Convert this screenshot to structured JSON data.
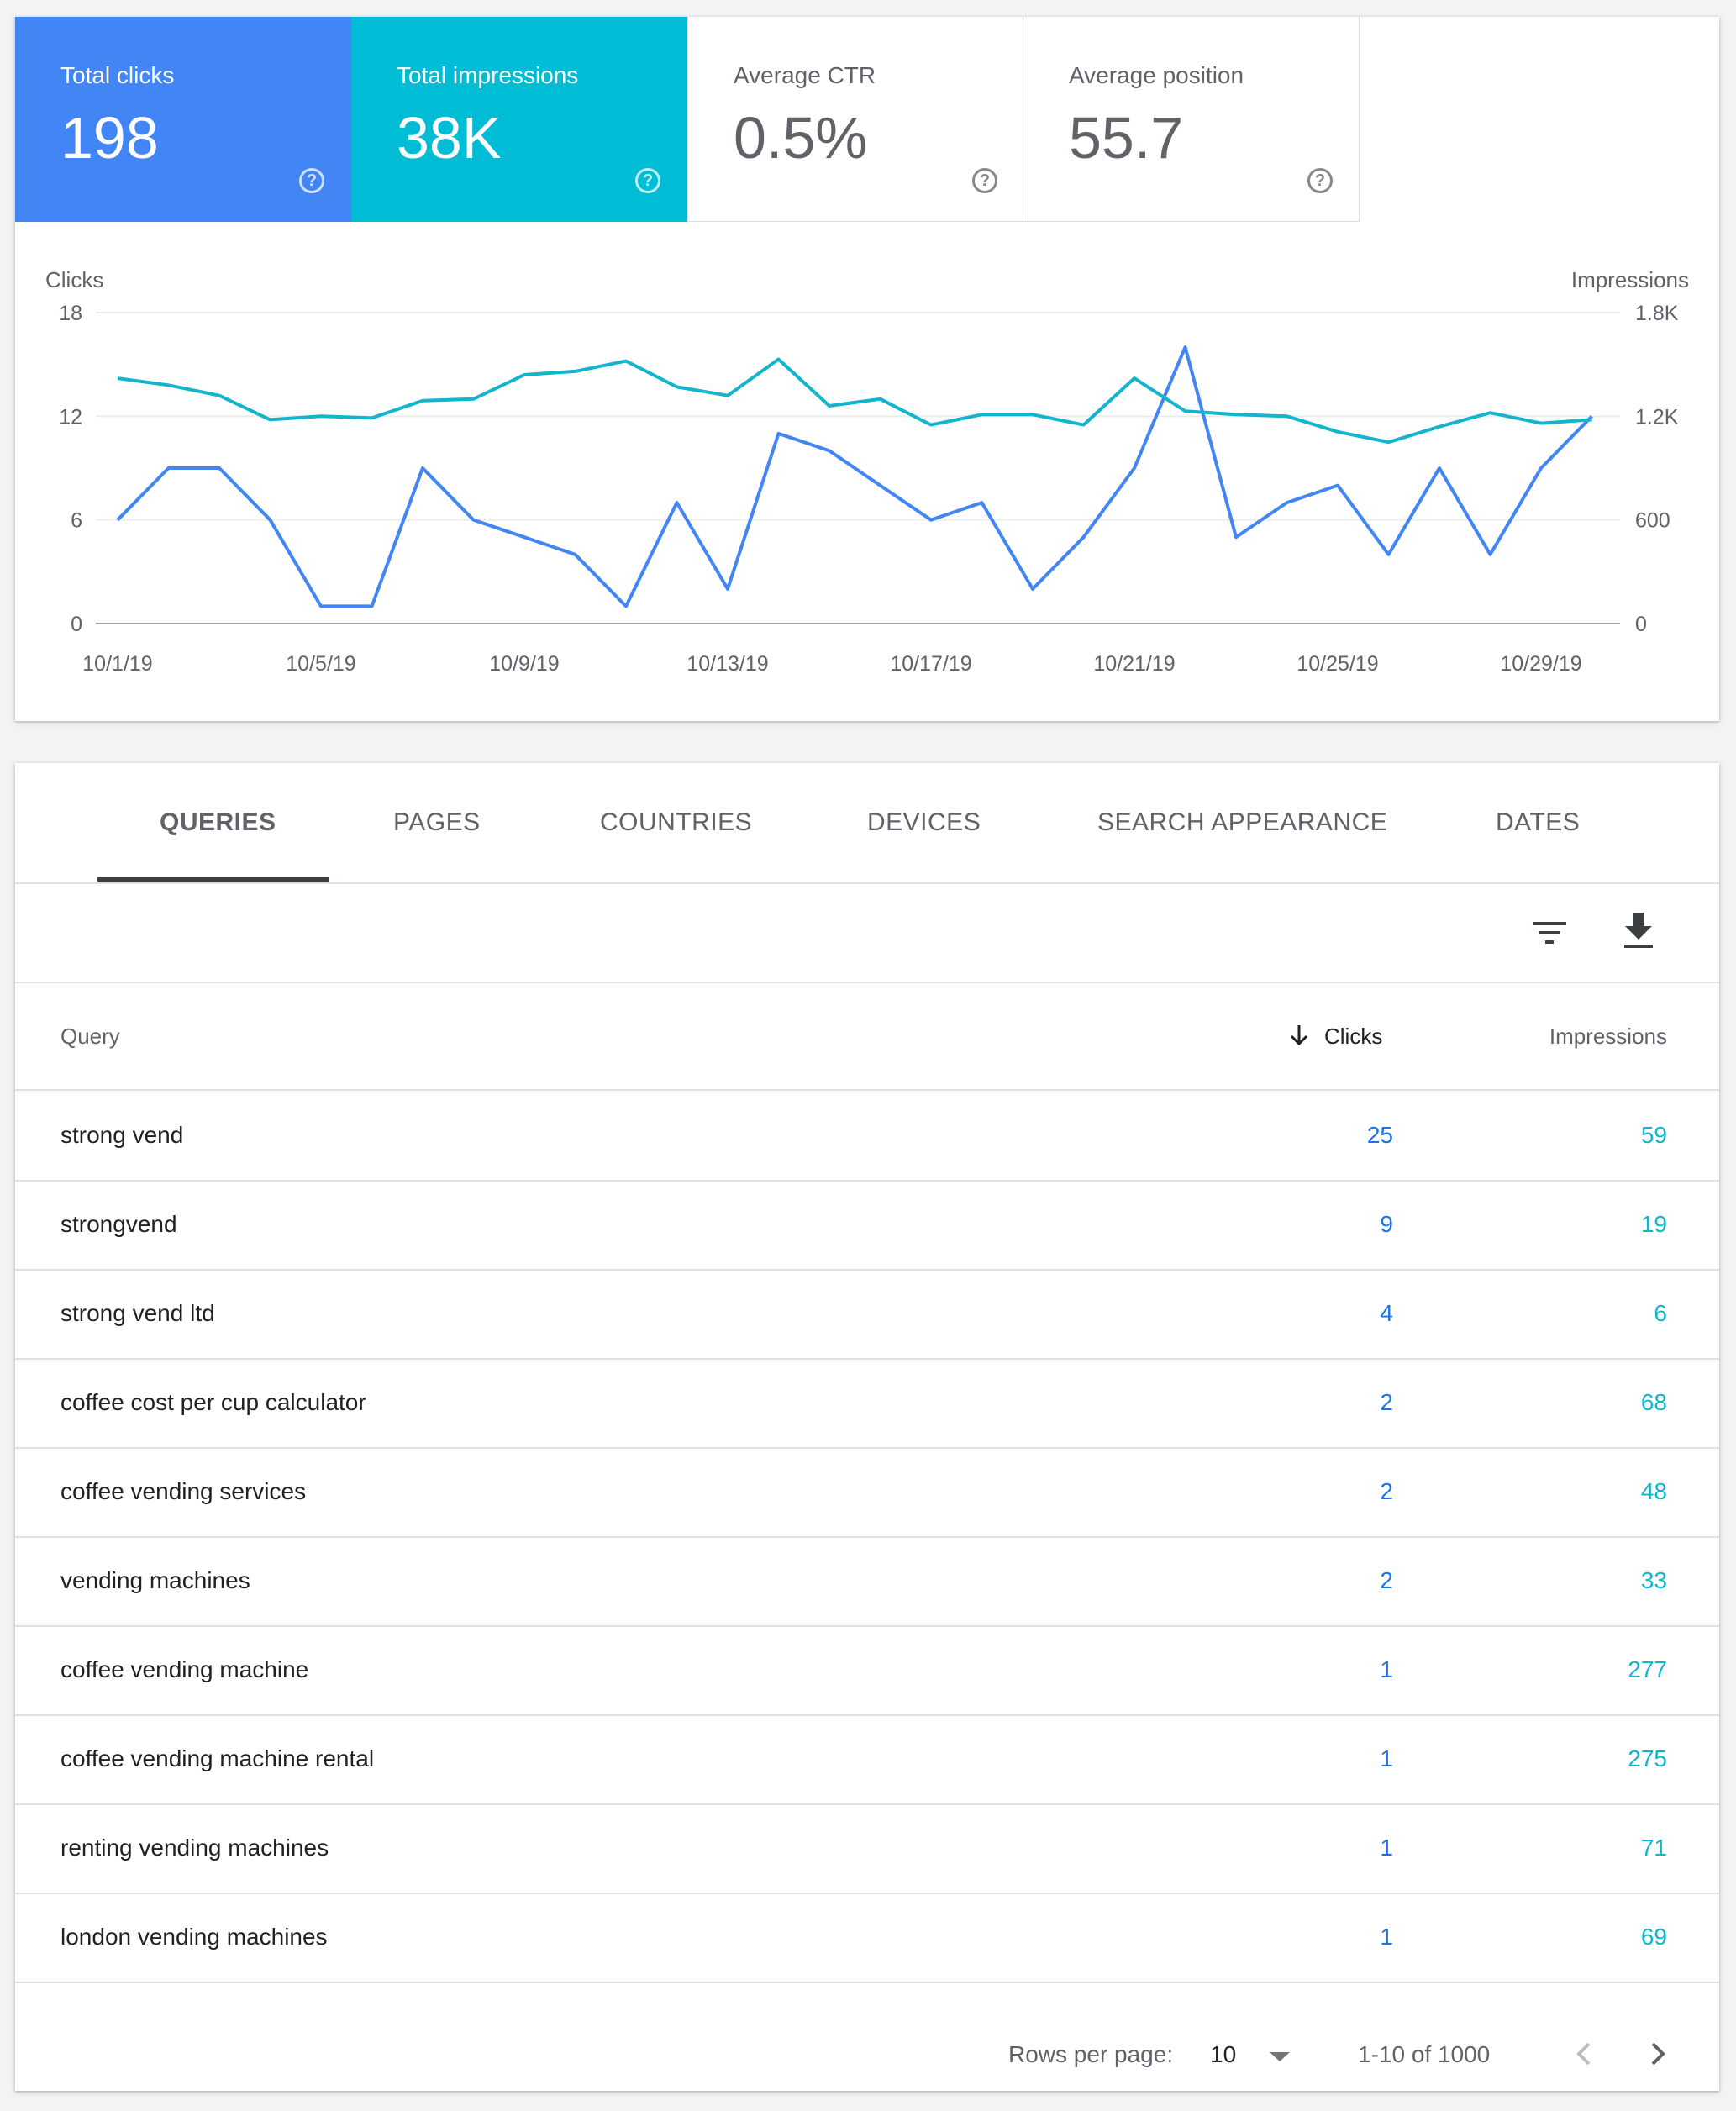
{
  "metrics": [
    {
      "label": "Total clicks",
      "value": "198",
      "bg": "#4285f4"
    },
    {
      "label": "Total impressions",
      "value": "38K",
      "bg": "#00bcd4"
    },
    {
      "label": "Average CTR",
      "value": "0.5%"
    },
    {
      "label": "Average position",
      "value": "55.7"
    }
  ],
  "help_glyph": "?",
  "chart_data": {
    "type": "line",
    "x": [
      "10/1/19",
      "10/2/19",
      "10/3/19",
      "10/4/19",
      "10/5/19",
      "10/6/19",
      "10/7/19",
      "10/8/19",
      "10/9/19",
      "10/10/19",
      "10/11/19",
      "10/12/19",
      "10/13/19",
      "10/14/19",
      "10/15/19",
      "10/16/19",
      "10/17/19",
      "10/18/19",
      "10/19/19",
      "10/20/19",
      "10/21/19",
      "10/22/19",
      "10/23/19",
      "10/24/19",
      "10/25/19",
      "10/26/19",
      "10/27/19",
      "10/28/19",
      "10/29/19",
      "10/30/19"
    ],
    "tick_labels": [
      "10/1/19",
      "10/5/19",
      "10/9/19",
      "10/13/19",
      "10/17/19",
      "10/21/19",
      "10/25/19",
      "10/29/19"
    ],
    "series": [
      {
        "name": "Clicks",
        "axis": "left",
        "color": "#4285f4",
        "values": [
          6,
          9,
          9,
          6,
          1,
          1,
          9,
          6,
          5,
          4,
          1,
          7,
          2,
          11,
          10,
          8,
          6,
          7,
          2,
          5,
          9,
          16,
          5,
          7,
          8,
          4,
          9,
          4,
          9,
          12
        ]
      },
      {
        "name": "Impressions",
        "axis": "right",
        "color": "#12b5cb",
        "values": [
          1420,
          1380,
          1320,
          1180,
          1200,
          1190,
          1290,
          1300,
          1440,
          1460,
          1520,
          1370,
          1320,
          1530,
          1260,
          1300,
          1150,
          1210,
          1210,
          1150,
          1420,
          1230,
          1210,
          1200,
          1110,
          1050,
          1140,
          1220,
          1160,
          1180
        ]
      }
    ],
    "ylabel_left": "Clicks",
    "ylabel_right": "Impressions",
    "ylim_left": [
      0,
      18
    ],
    "ylim_right": [
      0,
      1800
    ],
    "yticks_left": [
      "0",
      "6",
      "12",
      "18"
    ],
    "yticks_right": [
      "0",
      "600",
      "1.2K",
      "1.8K"
    ],
    "grid": true
  },
  "tabs": [
    {
      "label": "QUERIES",
      "active": true
    },
    {
      "label": "PAGES"
    },
    {
      "label": "COUNTRIES"
    },
    {
      "label": "DEVICES"
    },
    {
      "label": "SEARCH APPEARANCE"
    },
    {
      "label": "DATES"
    }
  ],
  "toolbar": {
    "filter_icon": "filter-icon",
    "download_icon": "download-icon"
  },
  "table": {
    "headers": {
      "query": "Query",
      "clicks": "Clicks",
      "impressions": "Impressions"
    },
    "sort_icon": "arrow-down-icon",
    "rows": [
      {
        "query": "strong vend",
        "clicks": "25",
        "impressions": "59"
      },
      {
        "query": "strongvend",
        "clicks": "9",
        "impressions": "19"
      },
      {
        "query": "strong vend ltd",
        "clicks": "4",
        "impressions": "6"
      },
      {
        "query": "coffee cost per cup calculator",
        "clicks": "2",
        "impressions": "68"
      },
      {
        "query": "coffee vending services",
        "clicks": "2",
        "impressions": "48"
      },
      {
        "query": "vending machines",
        "clicks": "2",
        "impressions": "33"
      },
      {
        "query": "coffee vending machine",
        "clicks": "1",
        "impressions": "277"
      },
      {
        "query": "coffee vending machine rental",
        "clicks": "1",
        "impressions": "275"
      },
      {
        "query": "renting vending machines",
        "clicks": "1",
        "impressions": "71"
      },
      {
        "query": "london vending machines",
        "clicks": "1",
        "impressions": "69"
      }
    ]
  },
  "pagination": {
    "rows_per_page_label": "Rows per page:",
    "rows_per_page": "10",
    "range": "1-10 of 1000"
  }
}
